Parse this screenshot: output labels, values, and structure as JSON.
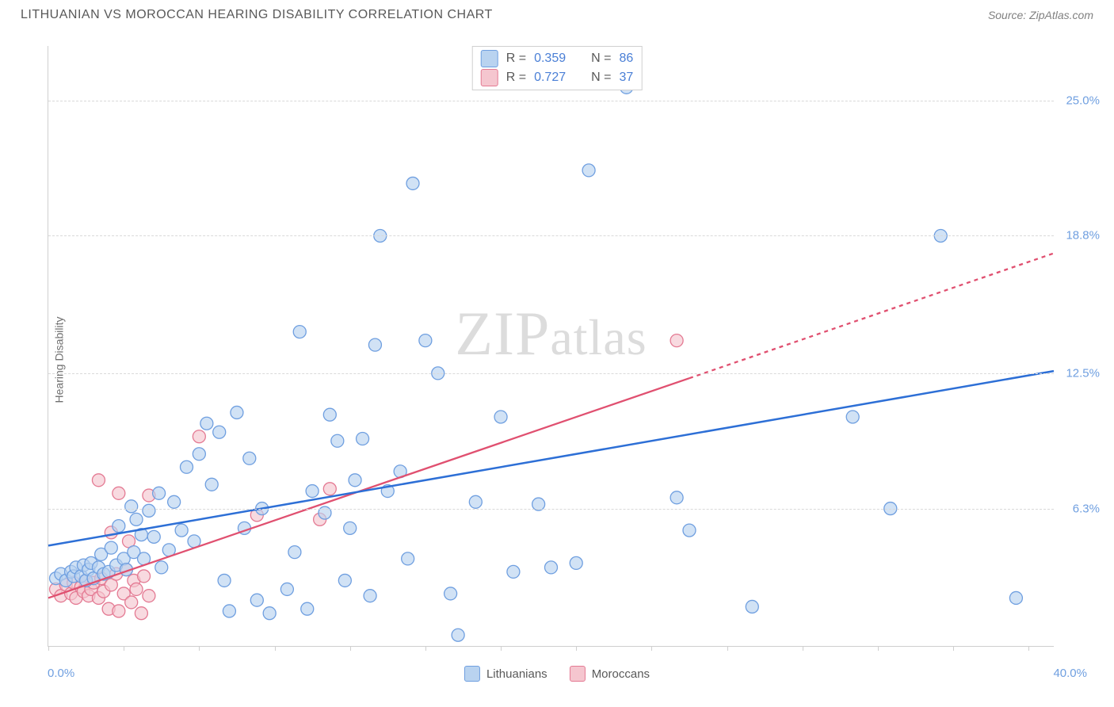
{
  "title": "LITHUANIAN VS MOROCCAN HEARING DISABILITY CORRELATION CHART",
  "source_label": "Source: ",
  "source_name": "ZipAtlas.com",
  "ylabel": "Hearing Disability",
  "watermark_big": "ZIP",
  "watermark_small": "atlas",
  "chart": {
    "type": "scatter",
    "background_color": "#ffffff",
    "grid_color": "#d9d9d9",
    "axis_color": "#cfcfcf",
    "xlim": [
      0,
      40
    ],
    "ylim": [
      0,
      27.5
    ],
    "xaxis_min_label": "0.0%",
    "xaxis_max_label": "40.0%",
    "xticks": [
      0,
      3,
      6,
      9,
      12,
      15,
      18,
      21,
      24,
      27,
      30,
      33,
      36,
      39
    ],
    "ygrid": [
      6.3,
      12.5,
      18.8,
      25.0
    ],
    "ytick_labels": [
      "6.3%",
      "12.5%",
      "18.8%",
      "25.0%"
    ],
    "marker_radius": 8,
    "marker_stroke_width": 1.3,
    "series": [
      {
        "name": "Lithuanians",
        "fill_color": "#b9d3f0",
        "stroke_color": "#6f9fe0",
        "R": "0.359",
        "N": "86",
        "trend": {
          "x1": 0,
          "y1": 4.6,
          "x2": 40,
          "y2": 12.6,
          "color": "#2d6fd6",
          "width": 2.5
        },
        "trend_dash_from_x": null,
        "points": [
          [
            0.3,
            3.1
          ],
          [
            0.5,
            3.3
          ],
          [
            0.7,
            3.0
          ],
          [
            0.9,
            3.4
          ],
          [
            1.0,
            3.2
          ],
          [
            1.1,
            3.6
          ],
          [
            1.3,
            3.2
          ],
          [
            1.4,
            3.7
          ],
          [
            1.5,
            3.0
          ],
          [
            1.6,
            3.5
          ],
          [
            1.7,
            3.8
          ],
          [
            1.8,
            3.1
          ],
          [
            2.0,
            3.6
          ],
          [
            2.1,
            4.2
          ],
          [
            2.2,
            3.3
          ],
          [
            2.4,
            3.4
          ],
          [
            2.5,
            4.5
          ],
          [
            2.7,
            3.7
          ],
          [
            2.8,
            5.5
          ],
          [
            3.0,
            4.0
          ],
          [
            3.1,
            3.5
          ],
          [
            3.3,
            6.4
          ],
          [
            3.4,
            4.3
          ],
          [
            3.5,
            5.8
          ],
          [
            3.7,
            5.1
          ],
          [
            3.8,
            4.0
          ],
          [
            4.0,
            6.2
          ],
          [
            4.2,
            5.0
          ],
          [
            4.4,
            7.0
          ],
          [
            4.5,
            3.6
          ],
          [
            4.8,
            4.4
          ],
          [
            5.0,
            6.6
          ],
          [
            5.3,
            5.3
          ],
          [
            5.5,
            8.2
          ],
          [
            5.8,
            4.8
          ],
          [
            6.0,
            8.8
          ],
          [
            6.3,
            10.2
          ],
          [
            6.5,
            7.4
          ],
          [
            6.8,
            9.8
          ],
          [
            7.0,
            3.0
          ],
          [
            7.2,
            1.6
          ],
          [
            7.5,
            10.7
          ],
          [
            7.8,
            5.4
          ],
          [
            8.0,
            8.6
          ],
          [
            8.3,
            2.1
          ],
          [
            8.5,
            6.3
          ],
          [
            8.8,
            1.5
          ],
          [
            9.5,
            2.6
          ],
          [
            9.8,
            4.3
          ],
          [
            10.0,
            14.4
          ],
          [
            10.3,
            1.7
          ],
          [
            10.5,
            7.1
          ],
          [
            11.0,
            6.1
          ],
          [
            11.2,
            10.6
          ],
          [
            11.5,
            9.4
          ],
          [
            11.8,
            3.0
          ],
          [
            12.0,
            5.4
          ],
          [
            12.2,
            7.6
          ],
          [
            12.5,
            9.5
          ],
          [
            12.8,
            2.3
          ],
          [
            13.0,
            13.8
          ],
          [
            13.2,
            18.8
          ],
          [
            13.5,
            7.1
          ],
          [
            14.0,
            8.0
          ],
          [
            14.3,
            4.0
          ],
          [
            14.5,
            21.2
          ],
          [
            15.0,
            14.0
          ],
          [
            15.5,
            12.5
          ],
          [
            16.0,
            2.4
          ],
          [
            16.3,
            0.5
          ],
          [
            17.0,
            6.6
          ],
          [
            18.0,
            10.5
          ],
          [
            18.5,
            3.4
          ],
          [
            19.5,
            6.5
          ],
          [
            20.0,
            3.6
          ],
          [
            21.0,
            3.8
          ],
          [
            21.5,
            21.8
          ],
          [
            22.0,
            26.0
          ],
          [
            23.0,
            25.6
          ],
          [
            25.0,
            6.8
          ],
          [
            25.5,
            5.3
          ],
          [
            28.0,
            1.8
          ],
          [
            32.0,
            10.5
          ],
          [
            33.5,
            6.3
          ],
          [
            35.5,
            18.8
          ],
          [
            38.5,
            2.2
          ]
        ]
      },
      {
        "name": "Moroccans",
        "fill_color": "#f5c6cf",
        "stroke_color": "#e47a93",
        "R": "0.727",
        "N": "37",
        "trend": {
          "x1": 0,
          "y1": 2.2,
          "x2": 40,
          "y2": 18.0,
          "color": "#e05070",
          "width": 2.3
        },
        "trend_dash_from_x": 25.5,
        "points": [
          [
            0.3,
            2.6
          ],
          [
            0.5,
            2.3
          ],
          [
            0.7,
            2.8
          ],
          [
            0.9,
            2.4
          ],
          [
            1.0,
            2.9
          ],
          [
            1.1,
            2.2
          ],
          [
            1.3,
            2.7
          ],
          [
            1.4,
            2.5
          ],
          [
            1.5,
            3.0
          ],
          [
            1.6,
            2.3
          ],
          [
            1.7,
            2.6
          ],
          [
            1.8,
            2.9
          ],
          [
            2.0,
            2.2
          ],
          [
            2.1,
            3.1
          ],
          [
            2.2,
            2.5
          ],
          [
            2.4,
            1.7
          ],
          [
            2.5,
            2.8
          ],
          [
            2.7,
            3.3
          ],
          [
            2.8,
            1.6
          ],
          [
            3.0,
            2.4
          ],
          [
            3.1,
            3.5
          ],
          [
            3.3,
            2.0
          ],
          [
            3.4,
            3.0
          ],
          [
            3.5,
            2.6
          ],
          [
            3.7,
            1.5
          ],
          [
            3.8,
            3.2
          ],
          [
            4.0,
            2.3
          ],
          [
            2.0,
            7.6
          ],
          [
            2.5,
            5.2
          ],
          [
            2.8,
            7.0
          ],
          [
            3.2,
            4.8
          ],
          [
            4.0,
            6.9
          ],
          [
            6.0,
            9.6
          ],
          [
            8.3,
            6.0
          ],
          [
            10.8,
            5.8
          ],
          [
            11.2,
            7.2
          ],
          [
            25.0,
            14.0
          ]
        ]
      }
    ]
  },
  "legend": {
    "series1_label": "Lithuanians",
    "series2_label": "Moroccans"
  },
  "stats_labels": {
    "R": "R =",
    "N": "N ="
  }
}
